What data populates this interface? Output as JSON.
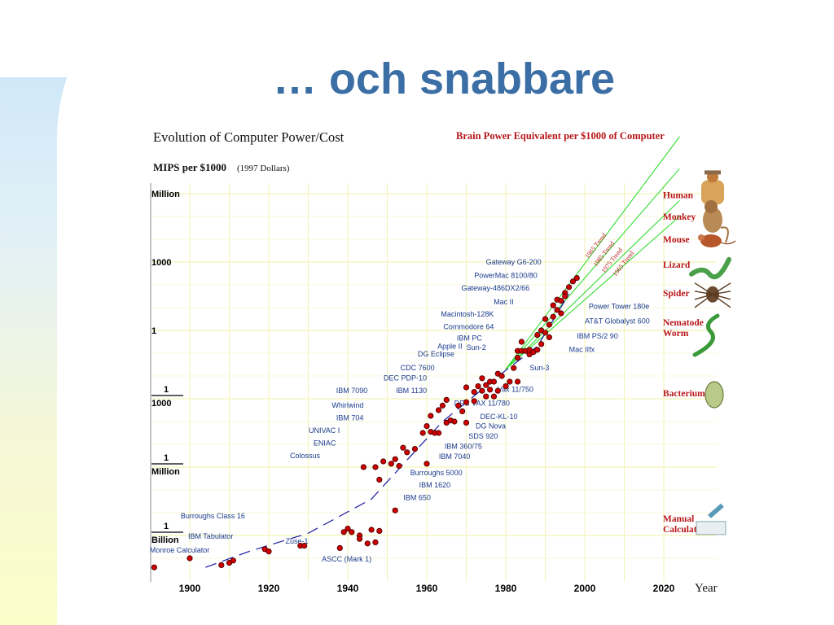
{
  "slide": {
    "title": "… och snabbare"
  },
  "chart_data": {
    "type": "scatter",
    "title": "Evolution of Computer Power/Cost",
    "ylabel_bold": "MIPS per $1000",
    "ylabel_note": "(1997 Dollars)",
    "xlabel": "Year",
    "x_ticks": [
      1900,
      1920,
      1940,
      1960,
      1980,
      2000,
      2020
    ],
    "xlim": [
      1892,
      2032
    ],
    "y_log_scale": true,
    "ylim_log10": [
      -10.6,
      6.6
    ],
    "y_ticks": [
      {
        "log10": 6,
        "label": "Million",
        "fraction": false
      },
      {
        "log10": 3,
        "label": "1000",
        "fraction": false
      },
      {
        "log10": 0,
        "label": "1",
        "fraction": false
      },
      {
        "log10": -3,
        "num": "1",
        "den": "1000",
        "fraction": true
      },
      {
        "log10": -6,
        "num": "1",
        "den": "Million",
        "fraction": true
      },
      {
        "log10": -9,
        "num": "1",
        "den": "Billion",
        "fraction": true
      }
    ],
    "grid": true,
    "points": [
      [
        1891,
        -10.4
      ],
      [
        1900,
        -10.0
      ],
      [
        1908,
        -10.3
      ],
      [
        1910,
        -10.2
      ],
      [
        1911,
        -10.1
      ],
      [
        1919,
        -9.6
      ],
      [
        1920,
        -9.7
      ],
      [
        1928,
        -9.45
      ],
      [
        1929,
        -9.45
      ],
      [
        1938,
        -9.55
      ],
      [
        1939,
        -8.85
      ],
      [
        1940,
        -8.7
      ],
      [
        1941,
        -8.85
      ],
      [
        1943,
        -9.0
      ],
      [
        1943,
        -9.15
      ],
      [
        1945,
        -9.35
      ],
      [
        1946,
        -8.75
      ],
      [
        1947,
        -9.3
      ],
      [
        1948,
        -8.8
      ],
      [
        1944,
        -6.0
      ],
      [
        1947,
        -6.0
      ],
      [
        1948,
        -6.55
      ],
      [
        1949,
        -5.75
      ],
      [
        1951,
        -5.85
      ],
      [
        1952,
        -5.65
      ],
      [
        1952,
        -7.9
      ],
      [
        1953,
        -5.95
      ],
      [
        1954,
        -5.15
      ],
      [
        1955,
        -5.35
      ],
      [
        1957,
        -5.2
      ],
      [
        1960,
        -5.85
      ],
      [
        1959,
        -4.5
      ],
      [
        1960,
        -4.2
      ],
      [
        1961,
        -3.75
      ],
      [
        1961,
        -4.45
      ],
      [
        1962,
        -4.5
      ],
      [
        1963,
        -4.5
      ],
      [
        1963,
        -3.5
      ],
      [
        1964,
        -3.3
      ],
      [
        1965,
        -3.05
      ],
      [
        1965,
        -4.05
      ],
      [
        1966,
        -3.95
      ],
      [
        1967,
        -4.0
      ],
      [
        1968,
        -3.3
      ],
      [
        1969,
        -3.55
      ],
      [
        1970,
        -3.15
      ],
      [
        1970,
        -4.05
      ],
      [
        1970,
        -2.5
      ],
      [
        1972,
        -3.1
      ],
      [
        1972,
        -2.7
      ],
      [
        1973,
        -2.45
      ],
      [
        1974,
        -2.1
      ],
      [
        1974,
        -2.65
      ],
      [
        1975,
        -2.9
      ],
      [
        1975,
        -2.4
      ],
      [
        1976,
        -2.25
      ],
      [
        1976,
        -2.6
      ],
      [
        1977,
        -2.9
      ],
      [
        1977,
        -2.25
      ],
      [
        1978,
        -1.9
      ],
      [
        1978,
        -2.65
      ],
      [
        1979,
        -2.0
      ],
      [
        1980,
        -2.45
      ],
      [
        1981,
        -2.25
      ],
      [
        1982,
        -1.65
      ],
      [
        1983,
        -1.2
      ],
      [
        1983,
        -2.25
      ],
      [
        1983,
        -0.9
      ],
      [
        1984,
        -0.5
      ],
      [
        1984,
        -0.9
      ],
      [
        1985,
        -0.9
      ],
      [
        1986,
        -1.05
      ],
      [
        1986,
        -0.85
      ],
      [
        1987,
        -0.95
      ],
      [
        1988,
        -0.85
      ],
      [
        1988,
        -0.2
      ],
      [
        1989,
        0.0
      ],
      [
        1989,
        -0.6
      ],
      [
        1990,
        -0.1
      ],
      [
        1990,
        0.5
      ],
      [
        1991,
        0.25
      ],
      [
        1991,
        -0.3
      ],
      [
        1992,
        0.6
      ],
      [
        1992,
        1.1
      ],
      [
        1993,
        0.9
      ],
      [
        1993,
        1.35
      ],
      [
        1994,
        0.75
      ],
      [
        1994,
        1.3
      ],
      [
        1995,
        1.65
      ],
      [
        1995,
        1.5
      ],
      [
        1996,
        1.9
      ],
      [
        1997,
        2.15
      ],
      [
        1998,
        2.3
      ]
    ],
    "curve": [
      [
        1904,
        -10.4
      ],
      [
        1915,
        -9.7
      ],
      [
        1930,
        -8.9
      ],
      [
        1946,
        -7.4
      ],
      [
        1956,
        -5.5
      ],
      [
        1964,
        -4.0
      ],
      [
        1980,
        -1.75
      ],
      [
        1988,
        -0.7
      ],
      [
        1996,
        1.6
      ]
    ],
    "trends": [
      {
        "label": "1965 Trend",
        "from": [
          1980,
          -1.7
        ],
        "to": [
          2024,
          8.5
        ]
      },
      {
        "label": "1985 Trend",
        "from": [
          1980,
          -1.7
        ],
        "to": [
          2024,
          7.1
        ]
      },
      {
        "label": "1975 Trend",
        "from": [
          1980,
          -1.7
        ],
        "to": [
          2024,
          5.7
        ]
      },
      {
        "label": "1965 Trend",
        "from": [
          1980,
          -1.7
        ],
        "to": [
          2024,
          5.0
        ]
      }
    ],
    "machine_labels": [
      {
        "text": "Gateway G6-200",
        "x": 1989,
        "y": 2.9
      },
      {
        "text": "PowerMac 8100/80",
        "x": 1988,
        "y": 2.3
      },
      {
        "text": "Gateway-486DX2/66",
        "x": 1986,
        "y": 1.75
      },
      {
        "text": "Mac II",
        "x": 1982,
        "y": 1.15
      },
      {
        "text": "Macintosh-128K",
        "x": 1977,
        "y": 0.6
      },
      {
        "text": "Commodore 64",
        "x": 1977,
        "y": 0.05
      },
      {
        "text": "IBM PC",
        "x": 1974,
        "y": -0.45
      },
      {
        "text": "Apple II",
        "x": 1969,
        "y": -0.8
      },
      {
        "text": "Sun-2",
        "x": 1975,
        "y": -0.85
      },
      {
        "text": "DG Eclipse",
        "x": 1967,
        "y": -1.15
      },
      {
        "text": "CDC 7600",
        "x": 1962,
        "y": -1.75
      },
      {
        "text": "DEC PDP-10",
        "x": 1960,
        "y": -2.2
      },
      {
        "text": "IBM 7090",
        "x": 1945,
        "y": -2.75
      },
      {
        "text": "IBM 1130",
        "x": 1960,
        "y": -2.75
      },
      {
        "text": "Whirlwind",
        "x": 1944,
        "y": -3.4
      },
      {
        "text": "IBM 704",
        "x": 1944,
        "y": -3.95
      },
      {
        "text": "UNIVAC I",
        "x": 1938,
        "y": -4.5
      },
      {
        "text": "ENIAC",
        "x": 1937,
        "y": -5.05
      },
      {
        "text": "Colossus",
        "x": 1933,
        "y": -5.6
      },
      {
        "text": "Burroughs Class 16",
        "x": 1914,
        "y": -8.25
      },
      {
        "text": "IBM Tabulator",
        "x": 1911,
        "y": -9.15
      },
      {
        "text": "Monroe Calculator",
        "x": 1905,
        "y": -9.75
      },
      {
        "text": "Zuse-1",
        "x": 1930,
        "y": -9.35
      },
      {
        "text": "ASCC (Mark 1)",
        "x": 1946,
        "y": -10.15
      },
      {
        "text": "Power Tower 180e",
        "x": 2001,
        "y": 0.95
      },
      {
        "text": "AT&T Globalyst 600",
        "x": 2000,
        "y": 0.3
      },
      {
        "text": "IBM PS/2 90",
        "x": 1998,
        "y": -0.35
      },
      {
        "text": "Mac IIfx",
        "x": 1996,
        "y": -0.95
      },
      {
        "text": "Sun-3",
        "x": 1991,
        "y": -1.75
      },
      {
        "text": "Vax 11/750",
        "x": 1987,
        "y": -2.7
      },
      {
        "text": "DEC VAX 11/780",
        "x": 1981,
        "y": -3.3
      },
      {
        "text": "DEC-KL-10",
        "x": 1983,
        "y": -3.9
      },
      {
        "text": "DG Nova",
        "x": 1980,
        "y": -4.3
      },
      {
        "text": "SDS 920",
        "x": 1978,
        "y": -4.75
      },
      {
        "text": "IBM 360/75",
        "x": 1974,
        "y": -5.2
      },
      {
        "text": "IBM 7040",
        "x": 1971,
        "y": -5.65
      },
      {
        "text": "Burroughs 5000",
        "x": 1969,
        "y": -6.35
      },
      {
        "text": "IBM 1620",
        "x": 1966,
        "y": -6.9
      },
      {
        "text": "IBM 650",
        "x": 1961,
        "y": -7.45
      }
    ],
    "brain_header": "Brain Power Equivalent per $1000 of Computer",
    "creatures": [
      {
        "name": "Human",
        "log10": 5.95,
        "icon": "human-icon"
      },
      {
        "name": "Monkey",
        "log10": 5.0,
        "icon": "monkey-icon"
      },
      {
        "name": "Mouse",
        "log10": 4.0,
        "icon": "mouse-icon"
      },
      {
        "name": "Lizard",
        "log10": 2.9,
        "icon": "lizard-icon"
      },
      {
        "name": "Spider",
        "log10": 1.65,
        "icon": "spider-icon"
      },
      {
        "name": "Nematode",
        "name2": "Worm",
        "log10": 0.0,
        "icon": "worm-icon"
      },
      {
        "name": "Bacterium",
        "log10": -2.75,
        "icon": "bacterium-icon"
      },
      {
        "name": "Manual",
        "name2": "Calculation",
        "log10": -8.6,
        "icon": "hand-writing-icon"
      }
    ],
    "colors": {
      "points": "#cc0000",
      "curve": "#2a2aa8",
      "trend": "#33dd33",
      "labels": "#1a3a8c",
      "creature": "#b8161a",
      "grid": "#f3f3b8"
    }
  }
}
